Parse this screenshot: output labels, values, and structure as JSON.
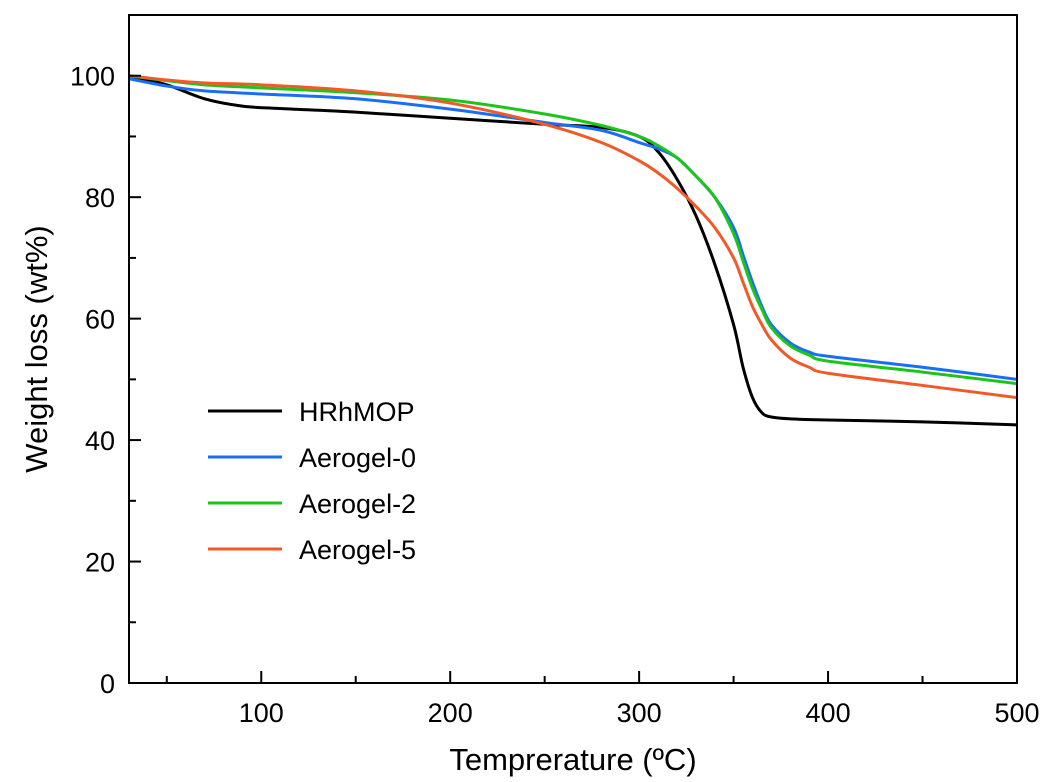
{
  "chart_data": {
    "type": "line",
    "xlabel": "Temprerature (ºC)",
    "ylabel": "Weight loss (wt%)",
    "xlim": [
      30,
      500
    ],
    "ylim": [
      0,
      110
    ],
    "x_ticks": [
      100,
      200,
      300,
      400,
      500
    ],
    "x_minor_ticks": [
      50,
      150,
      250,
      350,
      450
    ],
    "y_ticks": [
      0,
      20,
      40,
      60,
      80,
      100
    ],
    "y_minor_ticks": [
      10,
      30,
      50,
      70,
      90
    ],
    "grid": false,
    "legend_position": "lower-left",
    "series": [
      {
        "name": "HRhMOP",
        "color": "#000000",
        "x": [
          30,
          50,
          70,
          90,
          110,
          150,
          200,
          250,
          280,
          300,
          310,
          320,
          330,
          340,
          350,
          355,
          360,
          365,
          370,
          380,
          400,
          450,
          500
        ],
        "y": [
          100,
          98.5,
          96.2,
          95,
          94.6,
          94,
          93,
          92,
          91.5,
          90,
          87.5,
          83,
          77,
          69,
          59,
          52,
          47,
          44.5,
          43.8,
          43.5,
          43.3,
          43,
          42.5
        ]
      },
      {
        "name": "Aerogel-0",
        "color": "#1a6ef5",
        "x": [
          30,
          50,
          70,
          100,
          150,
          200,
          250,
          280,
          300,
          310,
          320,
          330,
          340,
          350,
          355,
          360,
          365,
          370,
          380,
          390,
          400,
          450,
          500
        ],
        "y": [
          99.5,
          98.3,
          97.5,
          97,
          96.2,
          94.5,
          92.3,
          91,
          89,
          88,
          86.5,
          83.5,
          80,
          75,
          70.5,
          66,
          62,
          59,
          56,
          54.5,
          53.8,
          52,
          50
        ]
      },
      {
        "name": "Aerogel-2",
        "color": "#1cc41c",
        "x": [
          30,
          50,
          70,
          100,
          150,
          200,
          250,
          280,
          300,
          310,
          320,
          330,
          340,
          350,
          355,
          360,
          365,
          370,
          380,
          390,
          400,
          450,
          500
        ],
        "y": [
          100,
          99.2,
          98.5,
          98,
          97.2,
          96,
          93.7,
          91.8,
          90,
          88.5,
          86.5,
          83.5,
          80,
          74,
          69.5,
          65,
          61.5,
          58.5,
          55.5,
          54,
          53,
          51.2,
          49.3
        ]
      },
      {
        "name": "Aerogel-5",
        "color": "#f05a28",
        "x": [
          30,
          50,
          70,
          100,
          150,
          200,
          250,
          280,
          300,
          310,
          320,
          330,
          340,
          350,
          355,
          360,
          365,
          370,
          380,
          390,
          400,
          450,
          500
        ],
        "y": [
          100,
          99.3,
          98.8,
          98.5,
          97.5,
          95.5,
          92,
          89,
          86,
          84,
          81.5,
          78.5,
          75,
          70,
          66,
          62,
          59,
          56.5,
          53.5,
          52,
          51,
          49,
          47
        ]
      }
    ]
  }
}
